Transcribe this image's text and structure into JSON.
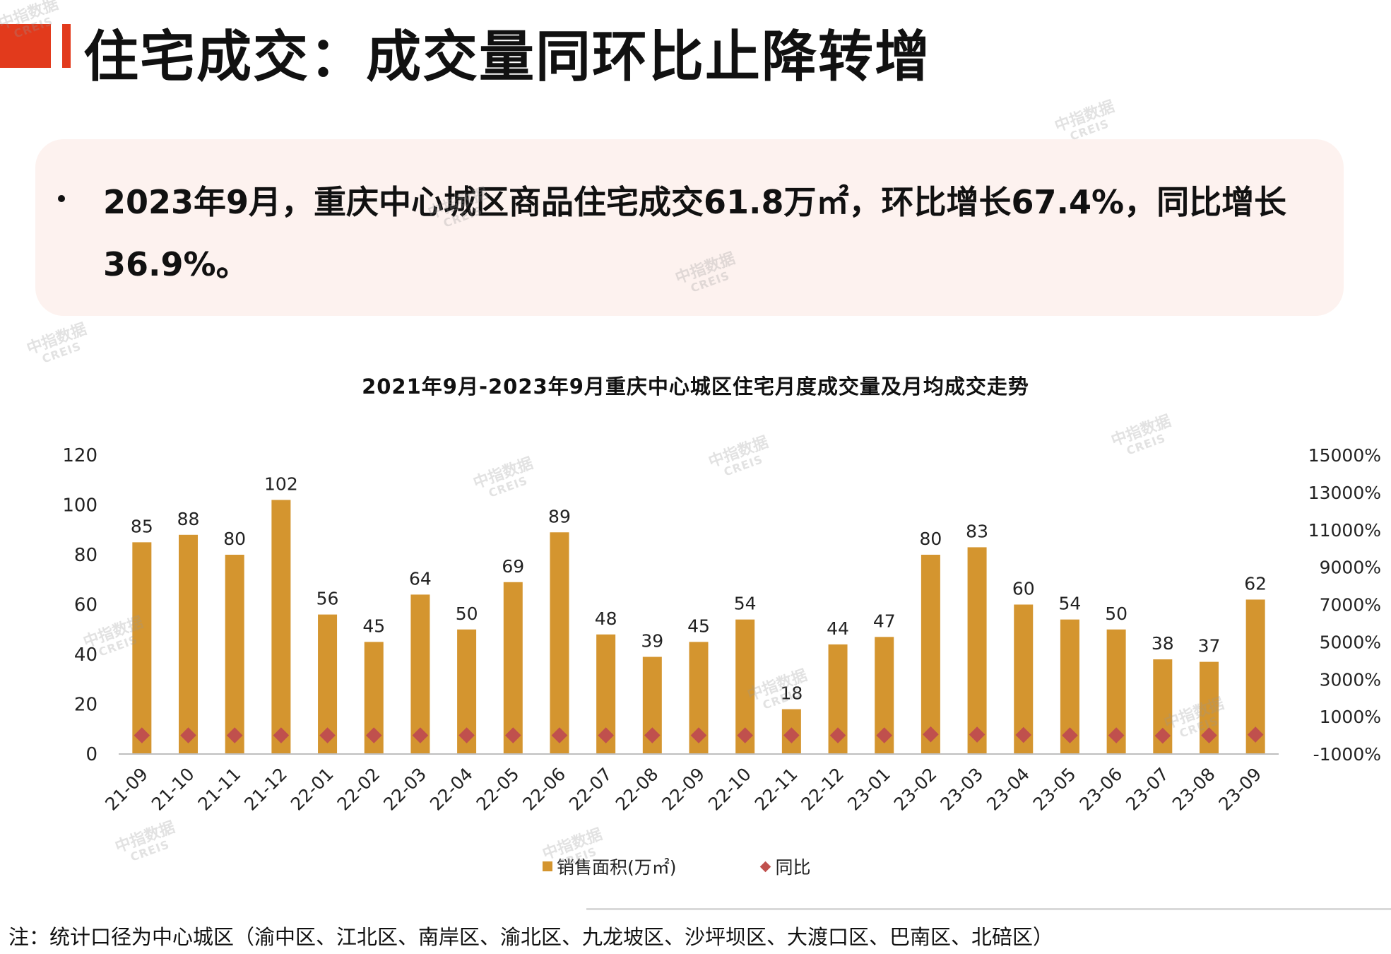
{
  "header": {
    "title": "住宅成交：成交量同环比止降转增"
  },
  "summary": {
    "text": "2023年9月，重庆中心城区商品住宅成交61.8万㎡，环比增长67.4%，同比增长36.9%。"
  },
  "colors": {
    "accent": "#e23a1c",
    "bar": "#d4952f",
    "marker": "#c0504d",
    "card": "#fdf2ef"
  },
  "chart_data": {
    "type": "bar",
    "title": "2021年9月-2023年9月重庆中心城区住宅月度成交量及月均成交走势",
    "categories": [
      "21-09",
      "21-10",
      "21-11",
      "21-12",
      "22-01",
      "22-02",
      "22-03",
      "22-04",
      "22-05",
      "22-06",
      "22-07",
      "22-08",
      "22-09",
      "22-10",
      "22-11",
      "22-12",
      "23-01",
      "23-02",
      "23-03",
      "23-04",
      "23-05",
      "23-06",
      "23-07",
      "23-08",
      "23-09"
    ],
    "series": [
      {
        "name": "销售面积(万㎡)",
        "type": "bar",
        "axis": "left",
        "values": [
          85,
          88,
          80,
          102,
          56,
          45,
          64,
          50,
          69,
          89,
          48,
          39,
          45,
          54,
          18,
          44,
          47,
          80,
          83,
          60,
          54,
          50,
          38,
          37,
          62
        ]
      },
      {
        "name": "同比",
        "type": "scatter",
        "axis": "right",
        "values": [
          0,
          0,
          0,
          0,
          0,
          0,
          0,
          0,
          0,
          0,
          0,
          0,
          0,
          0,
          0,
          0,
          0,
          50,
          40,
          20,
          0,
          0,
          -20,
          0,
          37
        ]
      }
    ],
    "ylim": [
      0,
      120
    ],
    "yticks": [
      "0",
      "20",
      "40",
      "60",
      "80",
      "100",
      "120"
    ],
    "y2lim": [
      -1000,
      15000
    ],
    "y2ticks": [
      "-1000%",
      "1000%",
      "3000%",
      "5000%",
      "7000%",
      "9000%",
      "11000%",
      "13000%",
      "15000%"
    ],
    "legend": [
      "销售面积(万㎡)",
      "同比"
    ],
    "legend_position": "bottom",
    "grid": false
  },
  "footnote": "注：统计口径为中心城区（渝中区、江北区、南岸区、渝北区、九龙坡区、沙坪坝区、大渡口区、巴南区、北碚区）",
  "watermark": {
    "cn": "中指数据",
    "en": "CREIS"
  }
}
